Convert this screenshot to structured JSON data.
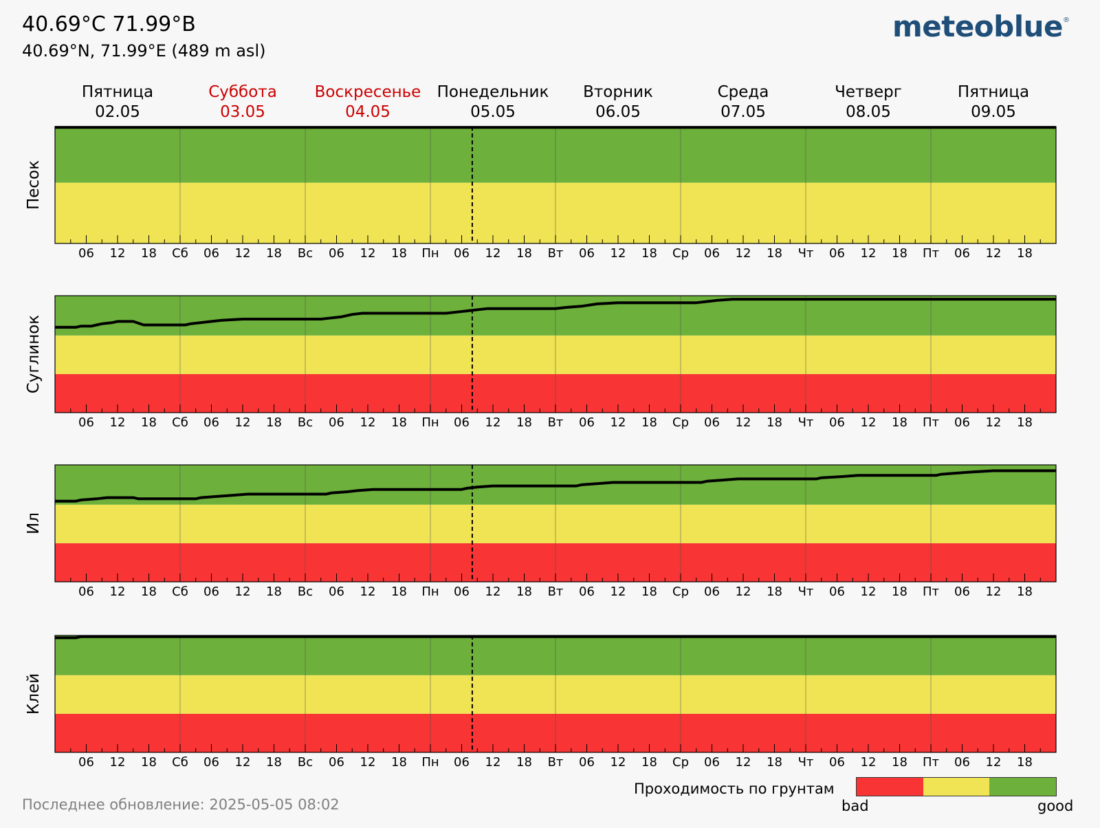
{
  "header": {
    "title": "40.69°C 71.99°В",
    "subtitle": "40.69°N, 71.99°E (489 m asl)",
    "logo": "meteoblue",
    "logo_mark": "®"
  },
  "footer": {
    "updated": "Последнее обновление: 2025-05-05 08:02"
  },
  "legend": {
    "title": "Проходимость по грунтам",
    "bad_label": "bad",
    "good_label": "good",
    "colors": [
      "#f83434",
      "#f0e454",
      "#6db03b"
    ]
  },
  "colors": {
    "bad": "#f83434",
    "medium": "#f0e454",
    "good": "#6db03b",
    "weekend_text": "#cc0000",
    "text": "#000000"
  },
  "chart_data": {
    "type": "line",
    "now_marker": "2025-05-05 08:02",
    "days": [
      {
        "name": "Пятница",
        "date": "02.05",
        "weekend": false,
        "abbr": ""
      },
      {
        "name": "Суббота",
        "date": "03.05",
        "weekend": true,
        "abbr": "Сб"
      },
      {
        "name": "Воскресенье",
        "date": "04.05",
        "weekend": true,
        "abbr": "Вс"
      },
      {
        "name": "Понедельник",
        "date": "05.05",
        "weekend": false,
        "abbr": "Пн"
      },
      {
        "name": "Вторник",
        "date": "06.05",
        "weekend": false,
        "abbr": "Вт"
      },
      {
        "name": "Среда",
        "date": "07.05",
        "weekend": false,
        "abbr": "Ср"
      },
      {
        "name": "Четверг",
        "date": "08.05",
        "weekend": false,
        "abbr": "Чт"
      },
      {
        "name": "Пятница",
        "date": "09.05",
        "weekend": false,
        "abbr": "Пт"
      }
    ],
    "hour_ticks": [
      "06",
      "12",
      "18"
    ],
    "y_scale": "0 = bottom, 1 = top of panel",
    "panels": [
      {
        "ylabel": "Песок",
        "bands": [
          "medium",
          "good"
        ],
        "band_tops": [
          0.52,
          1.0
        ],
        "points": [
          [
            0,
            0.993
          ],
          [
            192,
            0.993
          ]
        ]
      },
      {
        "ylabel": "Суглинок",
        "bands": [
          "bad",
          "medium",
          "good"
        ],
        "band_tops": [
          0.33,
          0.66,
          1.0
        ],
        "points": [
          [
            0,
            0.73
          ],
          [
            4,
            0.73
          ],
          [
            5,
            0.74
          ],
          [
            7,
            0.74
          ],
          [
            8,
            0.75
          ],
          [
            9,
            0.76
          ],
          [
            11,
            0.77
          ],
          [
            12,
            0.78
          ],
          [
            15,
            0.78
          ],
          [
            17,
            0.75
          ],
          [
            25,
            0.75
          ],
          [
            26,
            0.76
          ],
          [
            28,
            0.77
          ],
          [
            30,
            0.78
          ],
          [
            32,
            0.79
          ],
          [
            36,
            0.8
          ],
          [
            51,
            0.8
          ],
          [
            53,
            0.81
          ],
          [
            55,
            0.82
          ],
          [
            57,
            0.84
          ],
          [
            59,
            0.85
          ],
          [
            75,
            0.85
          ],
          [
            77,
            0.86
          ],
          [
            79,
            0.87
          ],
          [
            81,
            0.88
          ],
          [
            83,
            0.89
          ],
          [
            96,
            0.89
          ],
          [
            98,
            0.9
          ],
          [
            101,
            0.91
          ],
          [
            104,
            0.93
          ],
          [
            108,
            0.94
          ],
          [
            123,
            0.94
          ],
          [
            125,
            0.95
          ],
          [
            127,
            0.96
          ],
          [
            130,
            0.97
          ],
          [
            192,
            0.97
          ]
        ]
      },
      {
        "ylabel": "Ил",
        "bands": [
          "bad",
          "medium",
          "good"
        ],
        "band_tops": [
          0.33,
          0.66,
          1.0
        ],
        "points": [
          [
            0,
            0.69
          ],
          [
            4,
            0.69
          ],
          [
            5,
            0.7
          ],
          [
            8,
            0.71
          ],
          [
            10,
            0.72
          ],
          [
            15,
            0.72
          ],
          [
            16,
            0.71
          ],
          [
            27,
            0.71
          ],
          [
            28,
            0.72
          ],
          [
            31,
            0.73
          ],
          [
            34,
            0.74
          ],
          [
            37,
            0.75
          ],
          [
            52,
            0.75
          ],
          [
            53,
            0.76
          ],
          [
            56,
            0.77
          ],
          [
            58,
            0.78
          ],
          [
            61,
            0.79
          ],
          [
            78,
            0.79
          ],
          [
            79,
            0.8
          ],
          [
            81,
            0.81
          ],
          [
            84,
            0.82
          ],
          [
            100,
            0.82
          ],
          [
            101,
            0.83
          ],
          [
            104,
            0.84
          ],
          [
            107,
            0.85
          ],
          [
            124,
            0.85
          ],
          [
            125,
            0.86
          ],
          [
            128,
            0.87
          ],
          [
            131,
            0.88
          ],
          [
            146,
            0.88
          ],
          [
            147,
            0.89
          ],
          [
            151,
            0.9
          ],
          [
            154,
            0.91
          ],
          [
            169,
            0.91
          ],
          [
            170,
            0.92
          ],
          [
            173,
            0.93
          ],
          [
            176,
            0.94
          ],
          [
            180,
            0.95
          ],
          [
            192,
            0.95
          ]
        ]
      },
      {
        "ylabel": "Клей",
        "bands": [
          "bad",
          "medium",
          "good"
        ],
        "band_tops": [
          0.33,
          0.66,
          1.0
        ],
        "points": [
          [
            0,
            0.98
          ],
          [
            4,
            0.98
          ],
          [
            5,
            0.99
          ],
          [
            192,
            0.99
          ]
        ]
      }
    ]
  }
}
